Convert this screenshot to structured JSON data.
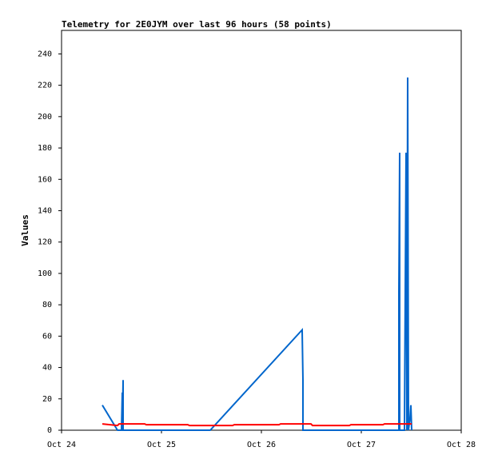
{
  "chart_data": {
    "type": "line",
    "title": "Telemetry for 2E0JYM over last 96 hours (58 points)",
    "y_label": "Values",
    "xlim": [
      0,
      4
    ],
    "xticks": [
      {
        "value": 0,
        "label": "Oct 24"
      },
      {
        "value": 1,
        "label": "Oct 25"
      },
      {
        "value": 2,
        "label": "Oct 26"
      },
      {
        "value": 3,
        "label": "Oct 27"
      },
      {
        "value": 4,
        "label": "Oct 28"
      }
    ],
    "ylim": [
      0,
      255
    ],
    "yticks": [
      0,
      20,
      40,
      60,
      80,
      100,
      120,
      140,
      160,
      180,
      200,
      220,
      240
    ],
    "grid": false,
    "series": [
      {
        "color": "#0066cc",
        "x": [
          0.408,
          0.56,
          0.6,
          0.608,
          0.608,
          0.616,
          0.616,
          1.488,
          2.408,
          2.416,
          2.416,
          3.376,
          3.376,
          3.384,
          3.384,
          3.432,
          3.44,
          3.448,
          3.456,
          3.464,
          3.472,
          3.488,
          3.496,
          3.504
        ],
        "values": [
          16,
          0,
          0,
          24,
          0,
          32,
          0,
          0,
          64,
          32,
          0,
          0,
          88,
          177,
          0,
          0,
          88,
          177,
          0,
          225,
          0,
          8,
          16,
          0
        ]
      },
      {
        "color": "#ff0000",
        "x": [
          0.408,
          0.56,
          0.576,
          0.832,
          0.848,
          1.264,
          1.28,
          1.712,
          1.728,
          2.176,
          2.192,
          2.496,
          2.512,
          2.88,
          2.896,
          3.216,
          3.232,
          3.504
        ],
        "values": [
          4,
          3,
          4,
          4,
          3.5,
          3.5,
          3,
          3,
          3.5,
          3.5,
          4,
          4,
          3,
          3,
          3.5,
          3.5,
          4,
          4
        ]
      }
    ]
  }
}
